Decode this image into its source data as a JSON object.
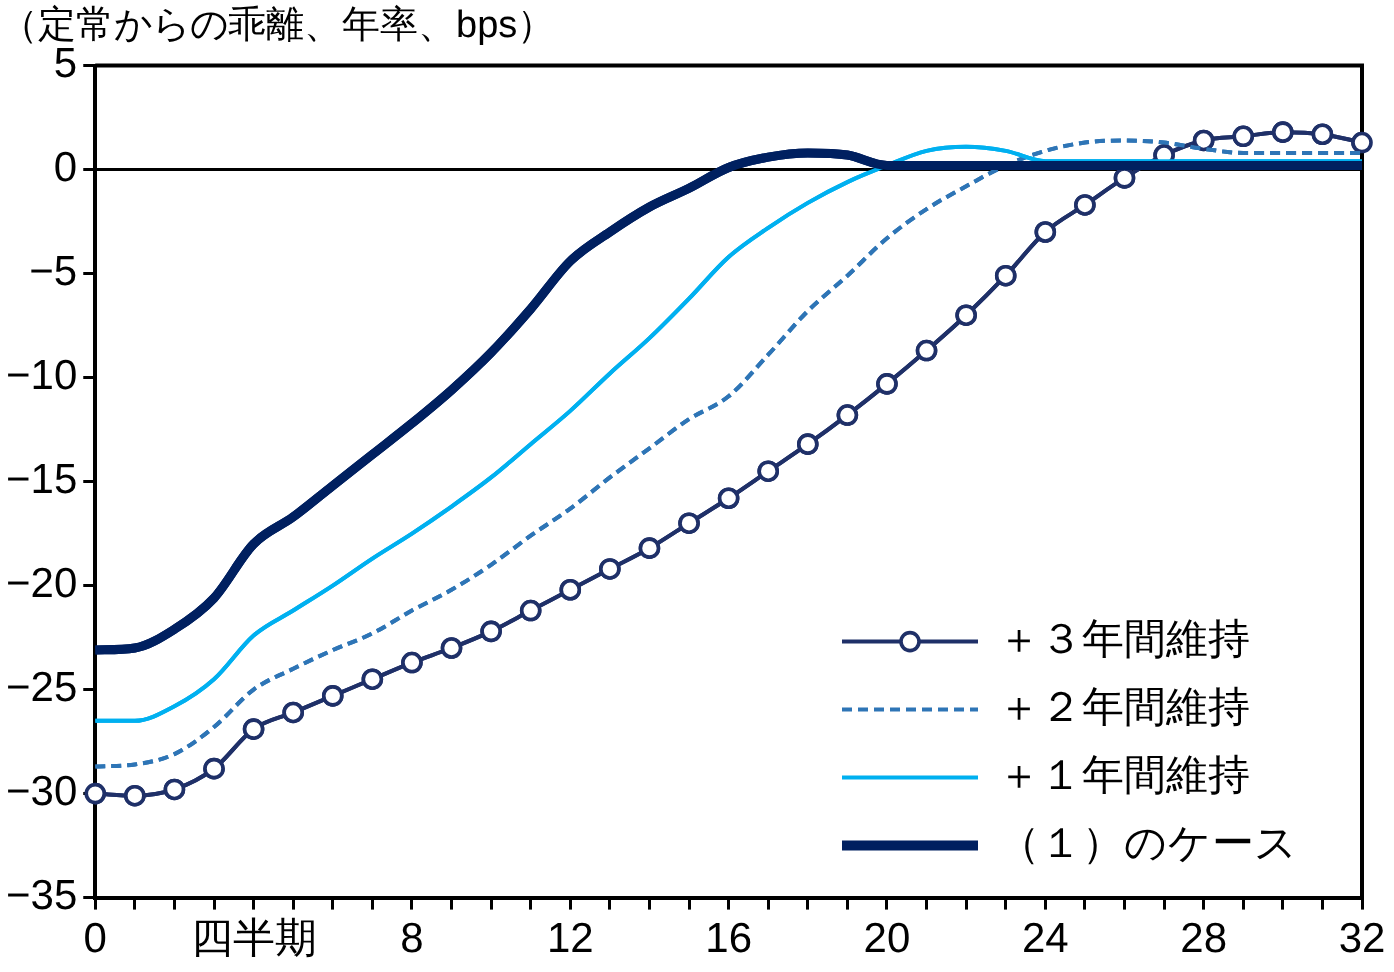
{
  "chart_data": {
    "type": "line",
    "title": "（定常からの乖離、年率、bps）",
    "x": [
      0,
      1,
      2,
      3,
      4,
      5,
      6,
      7,
      8,
      9,
      10,
      11,
      12,
      13,
      14,
      15,
      16,
      17,
      18,
      19,
      20,
      21,
      22,
      23,
      24,
      25,
      26,
      27,
      28,
      29,
      30,
      31,
      32
    ],
    "xlim": [
      0,
      32
    ],
    "xticks": [
      0,
      {
        "value": 1,
        "label": null
      },
      {
        "value": 2,
        "label": null
      },
      {
        "value": 3,
        "label": null
      },
      {
        "value": 4,
        "label": "四半期"
      },
      {
        "value": 5,
        "label": null
      },
      {
        "value": 6,
        "label": null
      },
      {
        "value": 7,
        "label": null
      },
      8,
      {
        "value": 9,
        "label": null
      },
      {
        "value": 10,
        "label": null
      },
      {
        "value": 11,
        "label": null
      },
      12,
      {
        "value": 13,
        "label": null
      },
      {
        "value": 14,
        "label": null
      },
      {
        "value": 15,
        "label": null
      },
      16,
      {
        "value": 17,
        "label": null
      },
      {
        "value": 18,
        "label": null
      },
      {
        "value": 19,
        "label": null
      },
      20,
      {
        "value": 21,
        "label": null
      },
      {
        "value": 22,
        "label": null
      },
      {
        "value": 23,
        "label": null
      },
      24,
      {
        "value": 25,
        "label": null
      },
      {
        "value": 26,
        "label": null
      },
      {
        "value": 27,
        "label": null
      },
      28,
      {
        "value": 29,
        "label": null
      },
      {
        "value": 30,
        "label": null
      },
      {
        "value": 31,
        "label": null
      },
      32
    ],
    "ylim": [
      -35,
      5
    ],
    "yticks": [
      -35,
      -30,
      -25,
      -20,
      -15,
      -10,
      -5,
      0,
      5
    ],
    "grid": false,
    "legend": "bottom right",
    "ref_lines": [
      {
        "axis": "y",
        "value": 0,
        "color": "#000000"
      }
    ],
    "series": [
      {
        "name": "＋３年間維持",
        "color": "#1f3068",
        "marker": "circle",
        "line_style": "solid",
        "values": [
          -30.0,
          -30.1,
          -29.8,
          -28.8,
          -26.9,
          -26.1,
          -25.3,
          -24.5,
          -23.7,
          -23.0,
          -22.2,
          -21.2,
          -20.2,
          -19.2,
          -18.2,
          -17.0,
          -15.8,
          -14.5,
          -13.2,
          -11.8,
          -10.3,
          -8.7,
          -7.0,
          -5.1,
          -3.0,
          -1.7,
          -0.4,
          0.7,
          1.4,
          1.6,
          1.8,
          1.7,
          1.3
        ]
      },
      {
        "name": "＋２年間維持",
        "color": "#2e75b6",
        "marker": "none",
        "line_style": "dashed",
        "values": [
          -28.7,
          -28.6,
          -28.1,
          -26.8,
          -25.0,
          -24.0,
          -23.1,
          -22.3,
          -21.2,
          -20.2,
          -19.0,
          -17.6,
          -16.3,
          -14.8,
          -13.4,
          -12.0,
          -10.9,
          -8.9,
          -6.8,
          -5.1,
          -3.3,
          -1.9,
          -0.8,
          0.2,
          0.9,
          1.3,
          1.4,
          1.3,
          1.0,
          0.8,
          0.8,
          0.8,
          0.8
        ]
      },
      {
        "name": "＋１年間維持",
        "color": "#00b0f0",
        "marker": "none",
        "line_style": "solid",
        "values": [
          -26.5,
          -26.5,
          -25.8,
          -24.5,
          -22.4,
          -21.2,
          -20.0,
          -18.7,
          -17.5,
          -16.2,
          -14.8,
          -13.2,
          -11.6,
          -9.8,
          -8.1,
          -6.2,
          -4.2,
          -2.8,
          -1.6,
          -0.6,
          0.2,
          0.9,
          1.1,
          0.9,
          0.4,
          0.4,
          0.4,
          0.4,
          0.4,
          0.4,
          0.4,
          0.4,
          0.4
        ]
      },
      {
        "name": "（１）のケース",
        "color": "#002060",
        "marker": "none",
        "line_style": "solid",
        "values": [
          -23.1,
          -23.0,
          -22.1,
          -20.6,
          -18.0,
          -16.7,
          -15.2,
          -13.7,
          -12.2,
          -10.6,
          -8.8,
          -6.7,
          -4.4,
          -3.0,
          -1.8,
          -0.9,
          0.1,
          0.6,
          0.8,
          0.7,
          0.2,
          0.2,
          0.2,
          0.2,
          0.2,
          0.2,
          0.2,
          0.2,
          0.2,
          0.2,
          0.2,
          0.2,
          0.2
        ]
      }
    ]
  }
}
